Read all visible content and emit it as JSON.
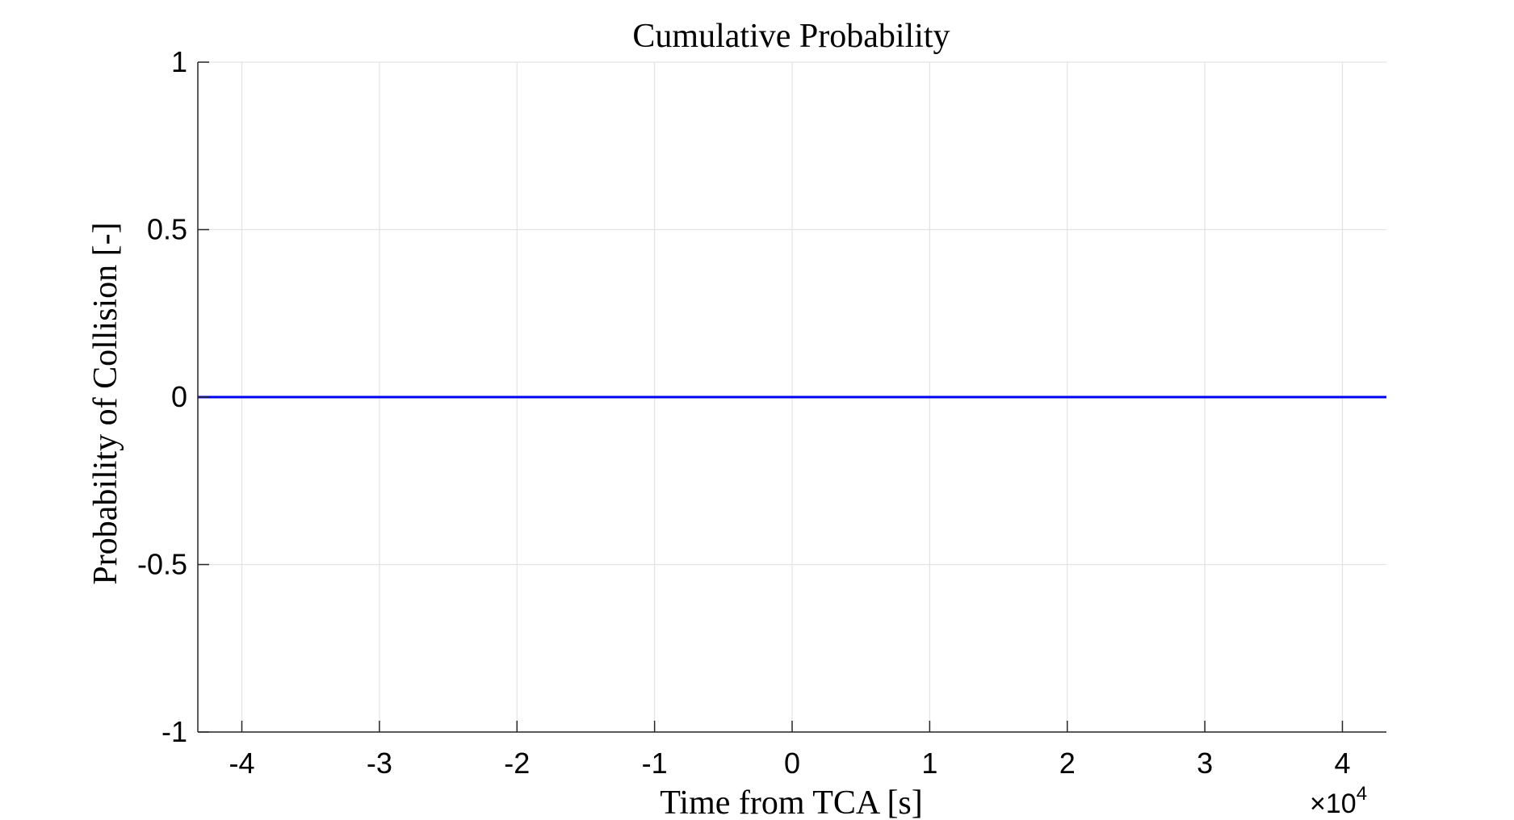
{
  "chart_data": {
    "type": "line",
    "title": "Cumulative Probability",
    "xlabel": "Time from TCA [s]",
    "ylabel": "Probability of Collision [-]",
    "x_exponent_base": "×10",
    "x_exponent_power": "4",
    "xlim": [
      -4.32,
      4.32
    ],
    "ylim": [
      -1,
      1
    ],
    "x_ticks": [
      -4,
      -3,
      -2,
      -1,
      0,
      1,
      2,
      3,
      4
    ],
    "x_tick_labels": [
      "-4",
      "-3",
      "-2",
      "-1",
      "0",
      "1",
      "2",
      "3",
      "4"
    ],
    "y_ticks": [
      -1,
      -0.5,
      0,
      0.5,
      1
    ],
    "y_tick_labels": [
      "-1",
      "-0.5",
      "0",
      "0.5",
      "1"
    ],
    "grid": true,
    "series": [
      {
        "color": "#0000ee",
        "x": [
          -4.32,
          -3,
          -2,
          -1,
          0,
          1,
          2,
          3,
          4.32
        ],
        "y": [
          0,
          0,
          0,
          0,
          0,
          0,
          0,
          0,
          0
        ]
      }
    ]
  }
}
